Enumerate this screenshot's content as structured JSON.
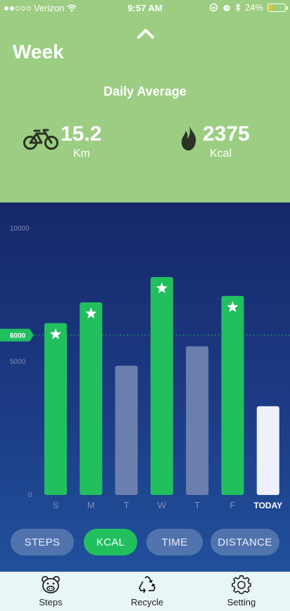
{
  "status_bar": {
    "carrier": "Verizon",
    "time": "9:57 AM",
    "battery": "24%",
    "battery_level": 0.24,
    "signal_bars_filled": 2,
    "signal_bars_total": 5
  },
  "header": {
    "period": "Week",
    "daily_average_label": "Daily Average",
    "distance_value": "15.2",
    "distance_unit": "Km",
    "calories_value": "2375",
    "calories_unit": "Kcal",
    "distance_icon": "bicycle-icon",
    "calories_icon": "flame-icon",
    "collapse_icon": "chevron-up-icon"
  },
  "chart_data": {
    "type": "bar",
    "categories": [
      "S",
      "M",
      "T",
      "W",
      "T",
      "F",
      "TODAY"
    ],
    "values": [
      6450,
      7230,
      4850,
      8180,
      5580,
      7470,
      3330
    ],
    "goal_met": [
      true,
      true,
      false,
      true,
      false,
      true,
      false
    ],
    "goal": 6000,
    "goal_label": "6000",
    "ylim": [
      0,
      10000
    ],
    "yticks": [
      "0",
      "5000",
      "10000"
    ],
    "colors": {
      "met": "#22bf5f",
      "missed": "#6b7fae",
      "today": "#eef0fb",
      "goal_line": "#22bf5f",
      "axis_label": "#7e8cb8"
    }
  },
  "tabs": [
    {
      "label": "STEPS",
      "active": false
    },
    {
      "label": "KCAL",
      "active": true
    },
    {
      "label": "TIME",
      "active": false
    },
    {
      "label": "DISTANCE",
      "active": false
    }
  ],
  "bottom_nav": [
    {
      "label": "Steps",
      "icon": "pig-face-icon"
    },
    {
      "label": "Recycle",
      "icon": "recycle-icon"
    },
    {
      "label": "Setting",
      "icon": "gear-icon"
    }
  ]
}
